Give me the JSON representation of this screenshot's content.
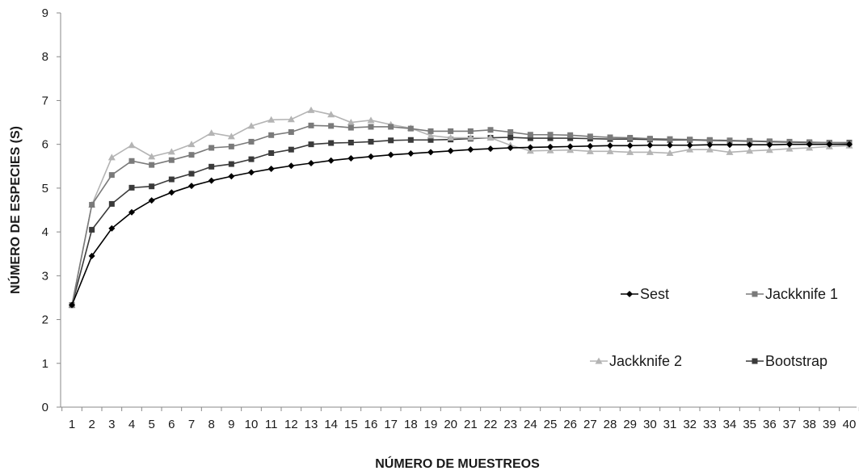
{
  "chart_data": {
    "type": "line",
    "title": "",
    "xlabel": "NÚMERO DE MUESTREOS",
    "ylabel": "NÚMERO DE ESPECIES (S)",
    "ylim": [
      0,
      9
    ],
    "yticks": [
      "0",
      "1",
      "2",
      "3",
      "4",
      "5",
      "6",
      "7",
      "8",
      "9"
    ],
    "categories": [
      "1",
      "2",
      "3",
      "4",
      "5",
      "6",
      "7",
      "8",
      "9",
      "10",
      "11",
      "12",
      "13",
      "14",
      "15",
      "16",
      "17",
      "18",
      "19",
      "20",
      "21",
      "22",
      "23",
      "24",
      "25",
      "26",
      "27",
      "28",
      "29",
      "30",
      "31",
      "32",
      "33",
      "34",
      "35",
      "36",
      "37",
      "38",
      "39",
      "40"
    ],
    "grid": false,
    "legend_position": "lower-right",
    "series": [
      {
        "name": "Sest",
        "color": "#000000",
        "marker": "diamond",
        "values": [
          2.33,
          3.45,
          4.08,
          4.45,
          4.72,
          4.9,
          5.05,
          5.17,
          5.27,
          5.36,
          5.44,
          5.51,
          5.57,
          5.63,
          5.68,
          5.72,
          5.76,
          5.79,
          5.82,
          5.85,
          5.88,
          5.9,
          5.92,
          5.93,
          5.94,
          5.95,
          5.96,
          5.97,
          5.97,
          5.98,
          5.98,
          5.98,
          5.99,
          5.99,
          5.99,
          5.99,
          6.0,
          6.0,
          6.0,
          6.0
        ]
      },
      {
        "name": "Jackknife 1",
        "color": "#7a7a7a",
        "marker": "square",
        "values": [
          2.33,
          4.62,
          5.3,
          5.62,
          5.53,
          5.64,
          5.76,
          5.92,
          5.95,
          6.06,
          6.21,
          6.28,
          6.43,
          6.42,
          6.38,
          6.4,
          6.4,
          6.36,
          6.3,
          6.3,
          6.3,
          6.33,
          6.28,
          6.22,
          6.22,
          6.21,
          6.18,
          6.16,
          6.15,
          6.13,
          6.12,
          6.11,
          6.1,
          6.09,
          6.08,
          6.07,
          6.06,
          6.05,
          6.04,
          6.03
        ]
      },
      {
        "name": "Jackknife 2",
        "color": "#b4b4b4",
        "marker": "triangle",
        "values": [
          2.33,
          4.62,
          5.7,
          5.98,
          5.72,
          5.83,
          6.0,
          6.26,
          6.18,
          6.42,
          6.56,
          6.57,
          6.78,
          6.68,
          6.5,
          6.55,
          6.45,
          6.37,
          6.2,
          6.15,
          6.15,
          6.15,
          5.98,
          5.85,
          5.86,
          5.87,
          5.84,
          5.84,
          5.82,
          5.82,
          5.8,
          5.88,
          5.88,
          5.82,
          5.85,
          5.87,
          5.9,
          5.92,
          5.95,
          5.97
        ]
      },
      {
        "name": "Bootstrap",
        "color": "#3a3a3a",
        "marker": "square",
        "values": [
          2.33,
          4.05,
          4.64,
          5.01,
          5.04,
          5.2,
          5.33,
          5.49,
          5.55,
          5.66,
          5.8,
          5.88,
          6.0,
          6.03,
          6.04,
          6.06,
          6.09,
          6.1,
          6.1,
          6.11,
          6.13,
          6.15,
          6.16,
          6.14,
          6.14,
          6.14,
          6.13,
          6.12,
          6.12,
          6.11,
          6.1,
          6.1,
          6.09,
          6.08,
          6.07,
          6.06,
          6.05,
          6.04,
          6.04,
          6.04
        ]
      }
    ]
  }
}
